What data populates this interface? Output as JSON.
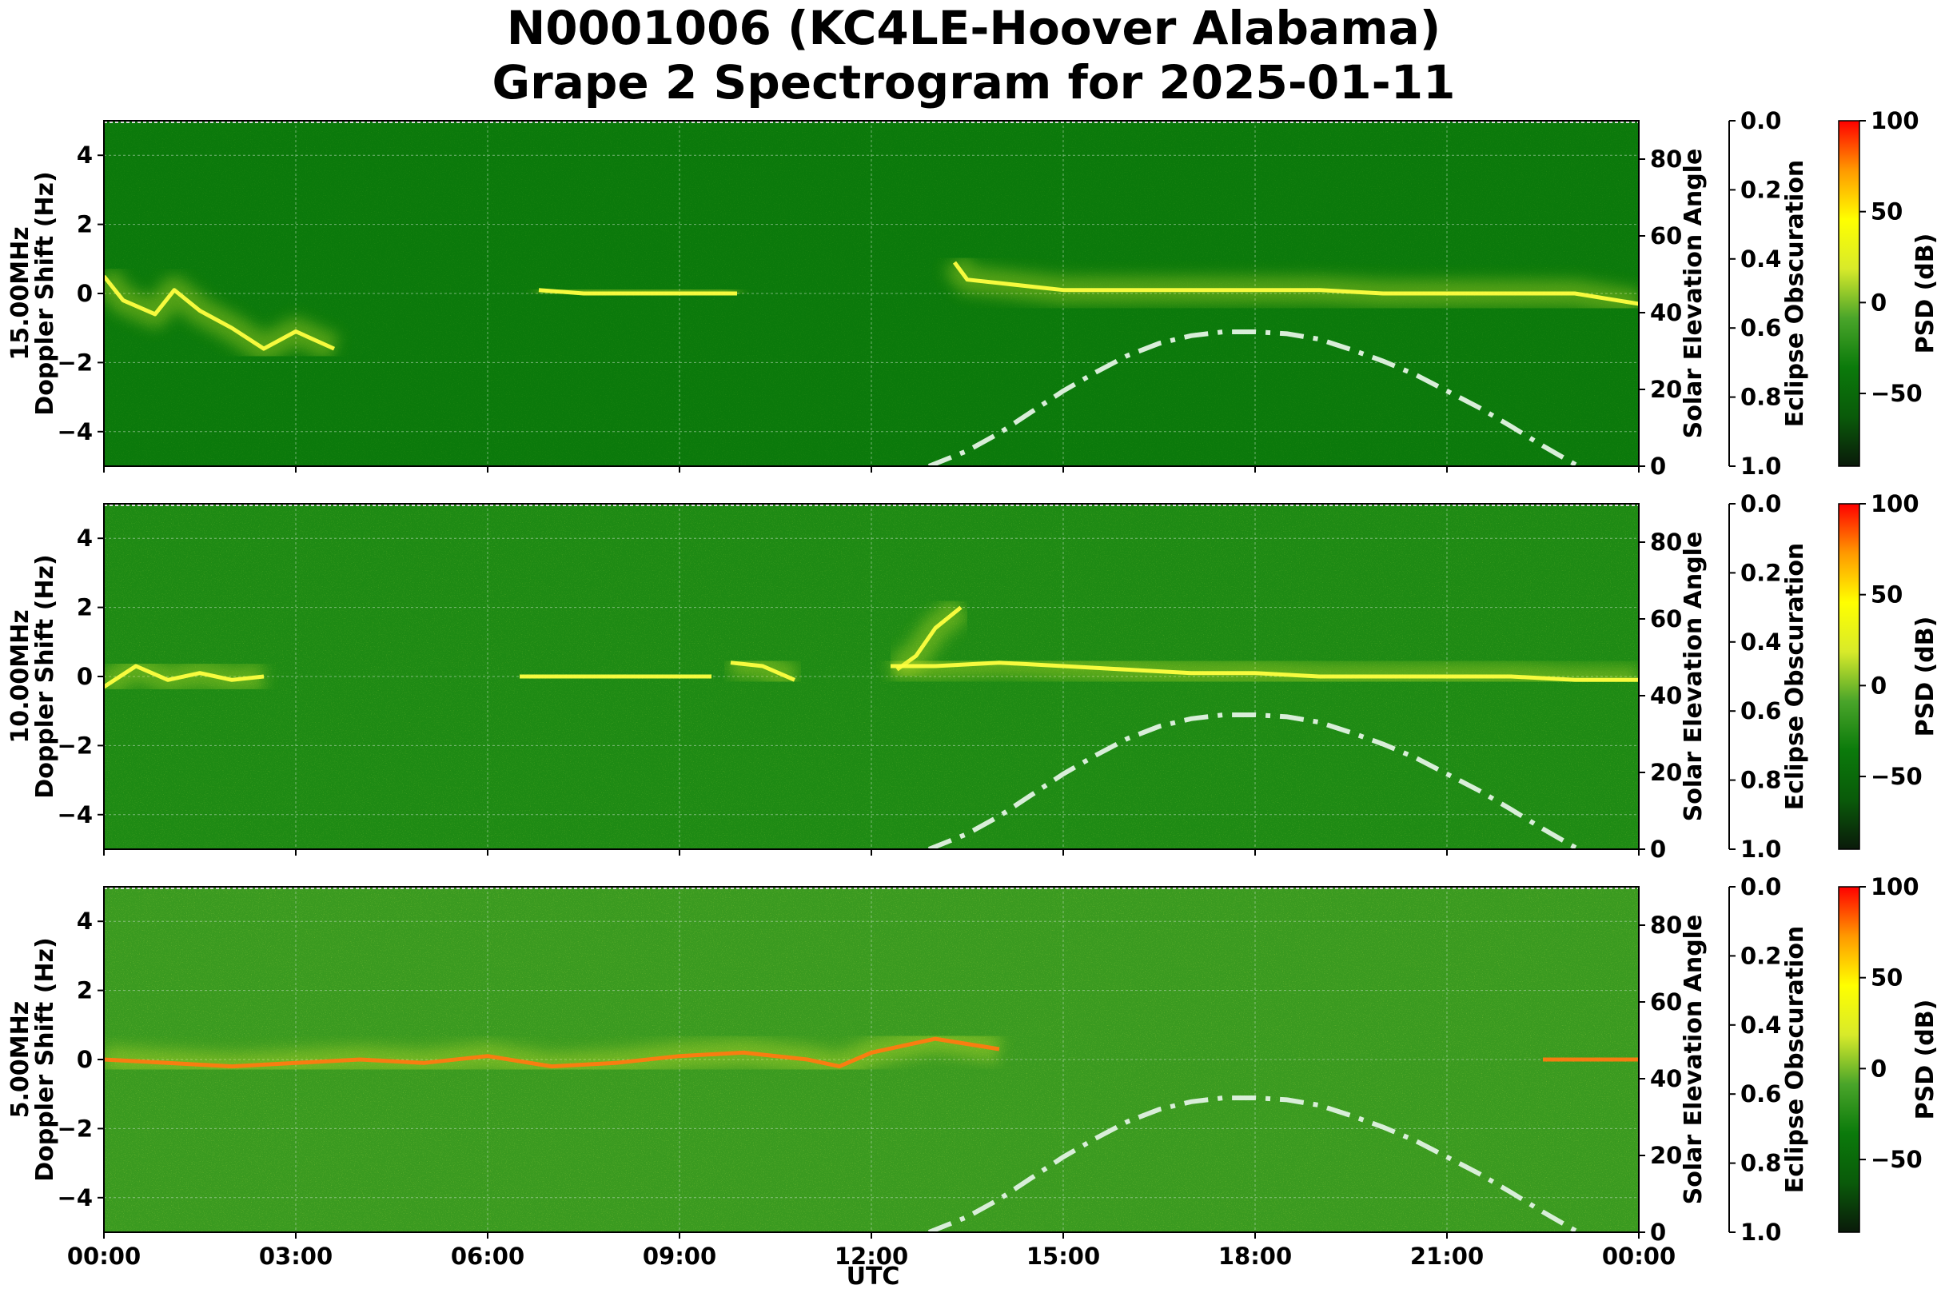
{
  "chart_data": {
    "type": "heatmap",
    "title": "N0001006 (KC4LE-Hoover Alabama)",
    "subtitle": "Grape 2 Spectrogram for 2025-01-11",
    "xlabel": "UTC",
    "x_ticks": [
      "00:00",
      "03:00",
      "06:00",
      "09:00",
      "12:00",
      "15:00",
      "18:00",
      "21:00",
      "00:00"
    ],
    "x_range_hours": [
      0,
      24
    ],
    "ylabel": "Doppler Shift (Hz)",
    "ylim": [
      -5,
      5
    ],
    "y_ticks": [
      4,
      2,
      0,
      -2,
      -4
    ],
    "secondary_y": {
      "label": "Solar Elevation Angle",
      "ylim": [
        0,
        90
      ],
      "ticks": [
        0,
        20,
        40,
        60,
        80
      ]
    },
    "tertiary_y": {
      "label": "Eclipse Obscuration",
      "ylim": [
        1.0,
        0.0
      ],
      "ticks": [
        "0.0",
        "0.2",
        "0.4",
        "0.6",
        "0.8",
        "1.0"
      ]
    },
    "colorbar": {
      "label": "PSD (dB)",
      "range": [
        -90,
        100
      ],
      "ticks": [
        "100",
        "50",
        "0",
        "−50"
      ],
      "tick_values": [
        100,
        50,
        0,
        -50
      ],
      "colors": [
        "#0a1a0a",
        "#0a5a0a",
        "#0b7a0b",
        "#4aa52a",
        "#d8ea2a",
        "#ffff00",
        "#ff9900",
        "#ff0000"
      ]
    },
    "grid": true,
    "panels": [
      {
        "name": "15.00MHz",
        "background_color": "#0b790b",
        "signal_traces": [
          {
            "x": [
              0,
              0.3,
              0.8,
              1.1,
              1.5,
              2.0,
              2.5,
              3.0,
              3.6
            ],
            "y": [
              0.5,
              -0.2,
              -0.6,
              0.1,
              -0.5,
              -1.0,
              -1.6,
              -1.1,
              -1.6
            ]
          },
          {
            "x": [
              6.8,
              7.5,
              8.5,
              9.0,
              9.9
            ],
            "y": [
              0.1,
              0.0,
              0.0,
              0.0,
              0.0
            ]
          },
          {
            "x": [
              13.3,
              13.5,
              14.0,
              14.5,
              15.0,
              16.0,
              17.0,
              18.0,
              19.0,
              20.0,
              21.0,
              22.0,
              23.0,
              24.0
            ],
            "y": [
              0.9,
              0.4,
              0.3,
              0.2,
              0.1,
              0.1,
              0.1,
              0.1,
              0.1,
              0.0,
              0.0,
              0.0,
              0.0,
              -0.3
            ]
          }
        ]
      },
      {
        "name": "10.00MHz",
        "background_color": "#1e8a14",
        "signal_traces": [
          {
            "x": [
              0,
              0.5,
              1.0,
              1.5,
              2.0,
              2.5
            ],
            "y": [
              -0.3,
              0.3,
              -0.1,
              0.1,
              -0.1,
              0.0
            ]
          },
          {
            "x": [
              6.5,
              7.5,
              8.5,
              9.5
            ],
            "y": [
              0.0,
              0.0,
              0.0,
              0.0
            ]
          },
          {
            "x": [
              9.8,
              10.3,
              10.8
            ],
            "y": [
              0.4,
              0.3,
              -0.1
            ]
          },
          {
            "x": [
              12.4,
              12.7,
              13.0,
              13.4
            ],
            "y": [
              0.2,
              0.6,
              1.4,
              2.0
            ]
          },
          {
            "x": [
              12.3,
              13.0,
              14.0,
              15.0,
              16.0,
              17.0,
              18.0,
              19.0,
              20.0,
              21.0,
              22.0,
              23.0,
              24.0
            ],
            "y": [
              0.3,
              0.3,
              0.4,
              0.3,
              0.2,
              0.1,
              0.1,
              0.0,
              0.0,
              0.0,
              0.0,
              -0.1,
              -0.1
            ]
          }
        ]
      },
      {
        "name": "5.00MHz",
        "background_color": "#3a9a20",
        "signal_traces": [
          {
            "x": [
              0,
              1,
              2,
              3,
              4,
              5,
              6,
              7,
              8,
              9,
              10,
              11,
              11.5,
              12,
              13,
              14
            ],
            "y": [
              0.0,
              -0.1,
              -0.2,
              -0.1,
              0.0,
              -0.1,
              0.1,
              -0.2,
              -0.1,
              0.1,
              0.2,
              0.0,
              -0.2,
              0.2,
              0.6,
              0.3
            ]
          },
          {
            "x": [
              22.5,
              24
            ],
            "y": [
              0.0,
              0.0
            ]
          }
        ]
      }
    ],
    "solar_elevation_curve": {
      "style": "dash-dot",
      "color": "#d9eed9",
      "points_x_hours": [
        12.9,
        13.5,
        14,
        14.5,
        15,
        15.5,
        16,
        16.5,
        17,
        17.5,
        18,
        18.5,
        19,
        19.5,
        20,
        20.5,
        21,
        21.5,
        22,
        22.5,
        23,
        23.5,
        24
      ],
      "points_elevation_deg": [
        0,
        4,
        8.6,
        14.1,
        19.6,
        24.4,
        28.8,
        32.0,
        34.0,
        35.0,
        35.0,
        34.5,
        33.1,
        30.4,
        27.4,
        23.9,
        19.6,
        15.3,
        10.4,
        5.3,
        0.5,
        -4,
        -9
      ]
    }
  }
}
